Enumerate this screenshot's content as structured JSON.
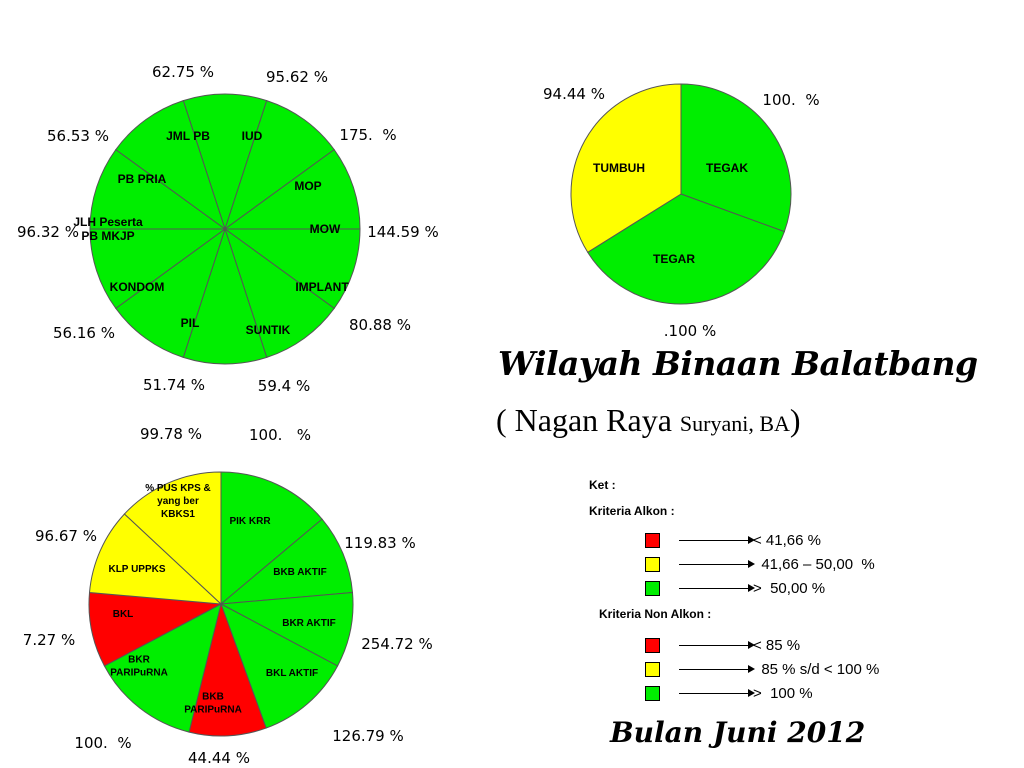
{
  "colors": {
    "green": "#00ee00",
    "yellow": "#ffff00",
    "red": "#ff0000",
    "line": "#555555"
  },
  "chart_data": [
    {
      "type": "pie",
      "slices": [
        {
          "label": "JML PB",
          "value": 62.75,
          "value_label": "62.75 %",
          "color": "green"
        },
        {
          "label": "IUD",
          "value": 95.62,
          "value_label": "95.62 %",
          "color": "green"
        },
        {
          "label": "MOP",
          "value": 175,
          "value_label": "175.  %",
          "color": "green"
        },
        {
          "label": "MOW",
          "value": 144.59,
          "value_label": "144.59 %",
          "color": "green"
        },
        {
          "label": "IMPLANT",
          "value": 80.88,
          "value_label": "80.88 %",
          "color": "green"
        },
        {
          "label": "SUNTIK",
          "value": 59.4,
          "value_label": "59.4 %",
          "color": "green"
        },
        {
          "label": "PIL",
          "value": 51.74,
          "value_label": "51.74 %",
          "color": "green"
        },
        {
          "label": "KONDOM",
          "value": 56.16,
          "value_label": "56.16 %",
          "color": "green"
        },
        {
          "label": "JLH Peserta\nPB MKJP",
          "value": 96.32,
          "value_label": "96.32 %",
          "color": "green"
        },
        {
          "label": "PB PRIA",
          "value": 56.53,
          "value_label": "56.53 %",
          "color": "green"
        }
      ]
    },
    {
      "type": "pie",
      "slices": [
        {
          "label": "TEGAK",
          "value": 100,
          "value_label": "100.  %",
          "color": "green"
        },
        {
          "label": "TEGAR",
          "value": 100,
          "value_label": ".100 %",
          "color": "green"
        },
        {
          "label": "TUMBUH",
          "value": 94.44,
          "value_label": "94.44 %",
          "color": "yellow"
        }
      ]
    },
    {
      "type": "pie",
      "slices": [
        {
          "label": "PIK KRR",
          "value": 100,
          "value_label": "100.   %",
          "color": "green"
        },
        {
          "label": "BKB AKTIF",
          "value": 119.83,
          "value_label": "119.83 %",
          "color": "green"
        },
        {
          "label": "BKR AKTIF",
          "value": 254.72,
          "value_label": "254.72 %",
          "color": "green"
        },
        {
          "label": "BKL AKTIF",
          "value": 126.79,
          "value_label": "126.79 %",
          "color": "green"
        },
        {
          "label": "BKB\nPARIPuRNA",
          "value": 44.44,
          "value_label": "44.44 %",
          "color": "red"
        },
        {
          "label": "BKR\nPARIPuRNA",
          "value": 100,
          "value_label": "100.  %",
          "color": "green"
        },
        {
          "label": "BKL",
          "value": 7.27,
          "value_label": "7.27 %",
          "color": "red"
        },
        {
          "label": "KLP UPPKS",
          "value": 96.67,
          "value_label": "96.67 %",
          "color": "yellow"
        },
        {
          "label": "% PUS KPS &\nyang ber\nKBKS1",
          "value": 99.78,
          "value_label": "99.78 %",
          "color": "yellow"
        }
      ]
    }
  ],
  "title": {
    "line1": "Wilayah Binaan Balatbang",
    "line2_main": "( Nagan Raya ",
    "line2_small": "Suryani, BA",
    "line2_close": ")",
    "month": "Bulan Juni 2012"
  },
  "legend": {
    "ket": "Ket :",
    "alkon_title": "Kriteria Alkon  :",
    "alkon": [
      {
        "color": "red",
        "text": "< 41,66 %"
      },
      {
        "color": "yellow",
        "text": "  41,66 – 50,00  %"
      },
      {
        "color": "green",
        "text": ">  50,00 %"
      }
    ],
    "nonalkon_title": "Kriteria Non Alkon  :",
    "nonalkon": [
      {
        "color": "red",
        "text": "< 85 %"
      },
      {
        "color": "yellow",
        "text": "  85 % s/d < 100 %"
      },
      {
        "color": "green",
        "text": ">  100 %"
      }
    ]
  }
}
